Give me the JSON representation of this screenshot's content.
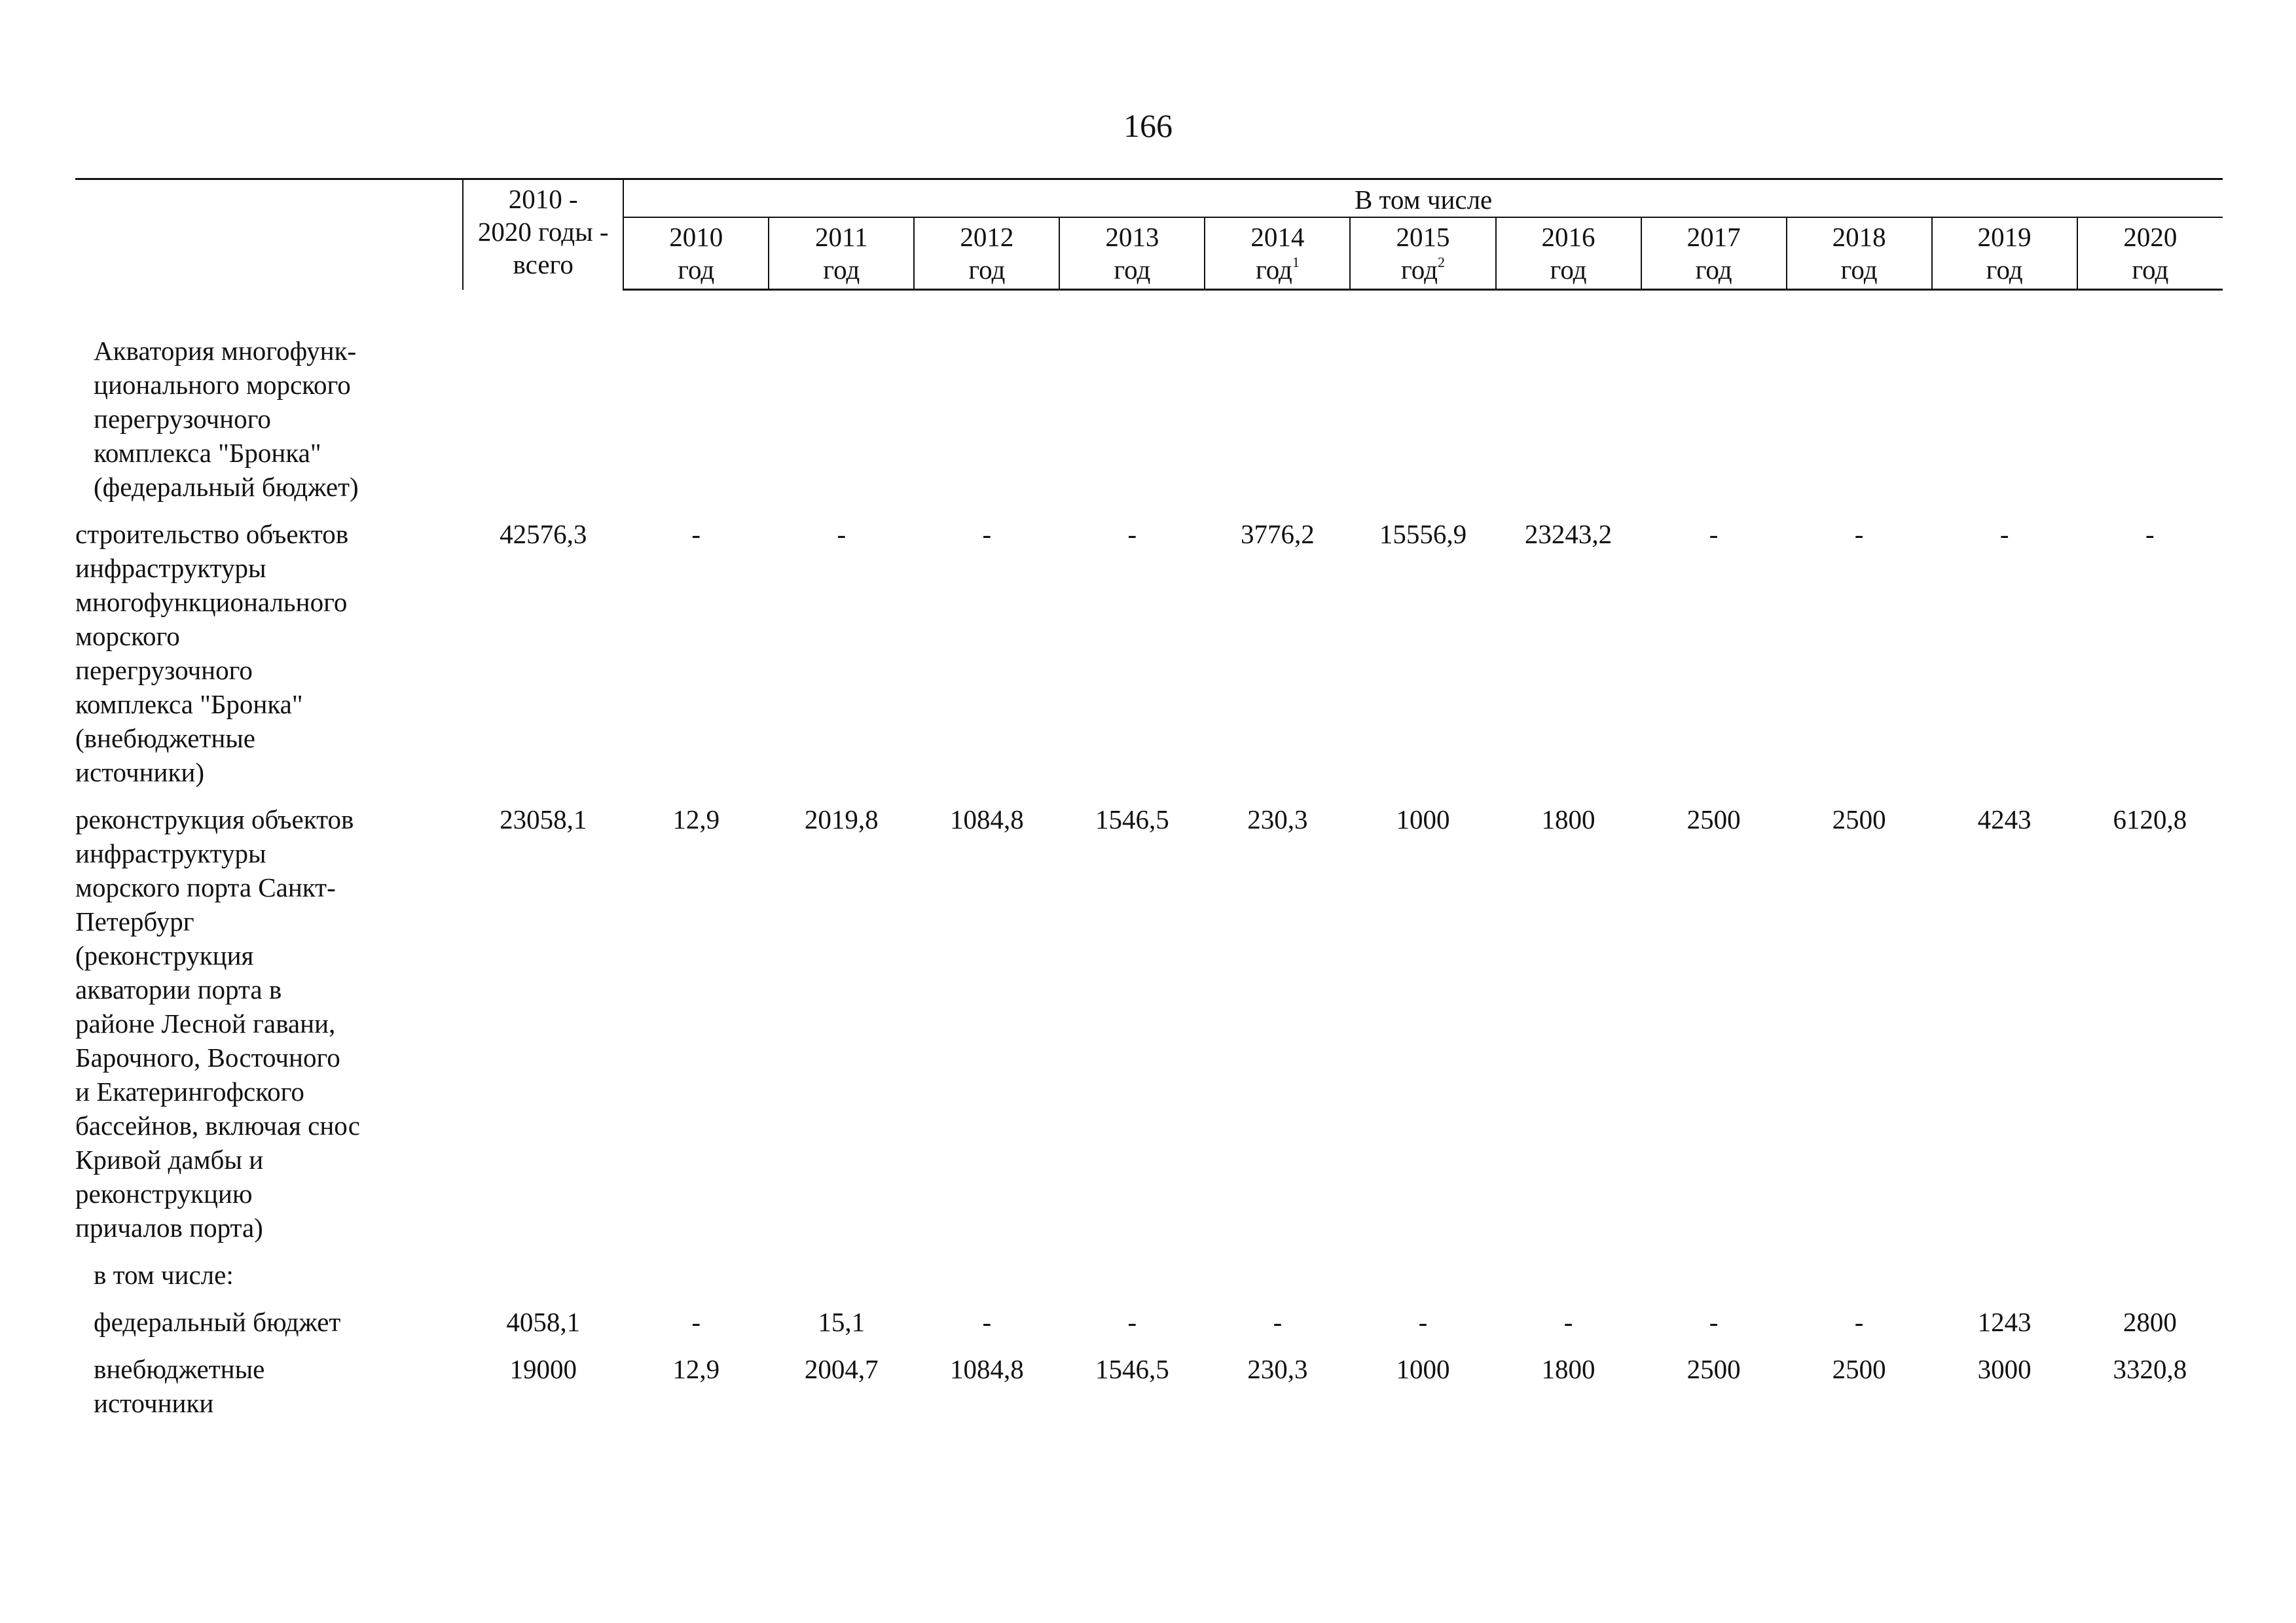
{
  "page": {
    "number": "166"
  },
  "header": {
    "total_line1": "2010 -",
    "total_line2": "2020 годы -",
    "total_line3": "всего",
    "group_label": "В том числе",
    "years": [
      {
        "year": "2010",
        "unit": "год",
        "note": ""
      },
      {
        "year": "2011",
        "unit": "год",
        "note": ""
      },
      {
        "year": "2012",
        "unit": "год",
        "note": ""
      },
      {
        "year": "2013",
        "unit": "год",
        "note": ""
      },
      {
        "year": "2014",
        "unit": "год",
        "note": "1"
      },
      {
        "year": "2015",
        "unit": "год",
        "note": "2"
      },
      {
        "year": "2016",
        "unit": "год",
        "note": ""
      },
      {
        "year": "2017",
        "unit": "год",
        "note": ""
      },
      {
        "year": "2018",
        "unit": "год",
        "note": ""
      },
      {
        "year": "2019",
        "unit": "год",
        "note": ""
      },
      {
        "year": "2020",
        "unit": "год",
        "note": ""
      }
    ]
  },
  "rows": [
    {
      "label": "Акватория многофунк-\nционального морского\nперегрузочного\nкомплекса \"Бронка\"\n(федеральный бюджет)",
      "indent": true,
      "total": "",
      "values": [
        "",
        "",
        "",
        "",
        "",
        "",
        "",
        "",
        "",
        "",
        ""
      ]
    },
    {
      "label": "строительство объектов\nинфраструктуры\nмногофункционального\nморского\nперегрузочного\nкомплекса \"Бронка\"\n(внебюджетные\nисточники)",
      "indent": false,
      "total": "42576,3",
      "values": [
        "-",
        "-",
        "-",
        "-",
        "3776,2",
        "15556,9",
        "23243,2",
        "-",
        "-",
        "-",
        "-"
      ]
    },
    {
      "label": "реконструкция объектов\nинфраструктуры\nморского порта Санкт-\nПетербург\n(реконструкция\nакватории порта в\nрайоне Лесной гавани,\nБарочного, Восточного\nи Екатерингофского\nбассейнов, включая снос\nКривой дамбы и\nреконструкцию\nпричалов порта)",
      "indent": false,
      "total": "23058,1",
      "values": [
        "12,9",
        "2019,8",
        "1084,8",
        "1546,5",
        "230,3",
        "1000",
        "1800",
        "2500",
        "2500",
        "4243",
        "6120,8"
      ]
    },
    {
      "label": "в том числе:",
      "indent": true,
      "total": "",
      "values": [
        "",
        "",
        "",
        "",
        "",
        "",
        "",
        "",
        "",
        "",
        ""
      ]
    },
    {
      "label": "федеральный бюджет",
      "indent": true,
      "total": "4058,1",
      "values": [
        "-",
        "15,1",
        "-",
        "-",
        "-",
        "-",
        "-",
        "-",
        "-",
        "1243",
        "2800"
      ]
    },
    {
      "label": "внебюджетные\nисточники",
      "indent": true,
      "total": "19000",
      "values": [
        "12,9",
        "2004,7",
        "1084,8",
        "1546,5",
        "230,3",
        "1000",
        "1800",
        "2500",
        "2500",
        "3000",
        "3320,8"
      ]
    }
  ]
}
